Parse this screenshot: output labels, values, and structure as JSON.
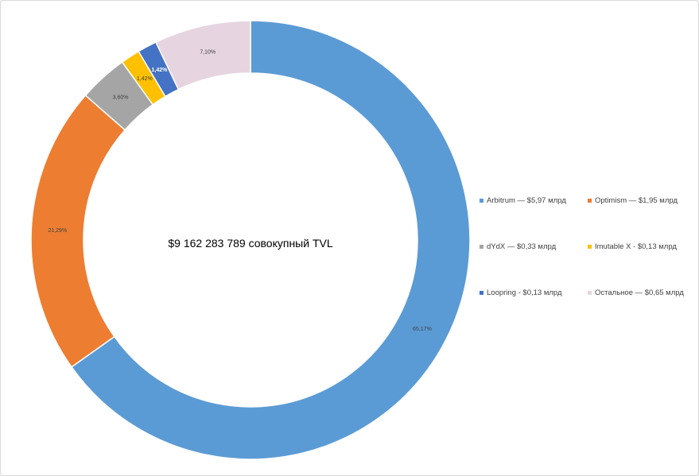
{
  "chart_data": {
    "type": "donut",
    "center_text": "$9 162 283 789 совокупный TVL",
    "slices": [
      {
        "name": "Arbitrum",
        "legend": "Arbitrum — $5,97 млрд",
        "percent": 65.17,
        "label": "65,17%",
        "color": "#5b9bd5"
      },
      {
        "name": "Optimism",
        "legend": "Optimism — $1,95 млрд",
        "percent": 21.29,
        "label": "21,29%",
        "color": "#ed7d31"
      },
      {
        "name": "dYdX",
        "legend": "dYdX — $0,33 млрд",
        "percent": 3.6,
        "label": "3,60%",
        "color": "#a5a5a5"
      },
      {
        "name": "Imutable X",
        "legend": "Imutable X - $0,13 млрд",
        "percent": 1.42,
        "label": "1,42%",
        "color": "#ffc000"
      },
      {
        "name": "Loopring",
        "legend": "Loopring - $0,13 млрд",
        "percent": 1.42,
        "label": "1,42%",
        "color": "#4472c4"
      },
      {
        "name": "Остальное",
        "legend": "Остальное — $0,65 млрд",
        "percent": 7.1,
        "label": "7,10%",
        "color": "#e6d5e0"
      }
    ]
  }
}
